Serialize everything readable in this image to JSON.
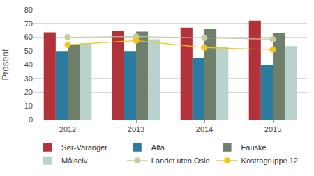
{
  "chart_data": {
    "type": "bar",
    "y_label": "Prosent",
    "categories": [
      "2012",
      "2013",
      "2014",
      "2015"
    ],
    "series": [
      {
        "name": "Sør-Varanger",
        "type": "bar",
        "color": "#b2323b",
        "values": [
          63.5,
          64.5,
          67,
          72
        ]
      },
      {
        "name": "Alta",
        "type": "bar",
        "color": "#2b7ba1",
        "values": [
          49.5,
          49.5,
          45,
          40
        ]
      },
      {
        "name": "Fauske",
        "type": "bar",
        "color": "#6e7f6c",
        "values": [
          54.5,
          64,
          66,
          63
        ]
      },
      {
        "name": "Målselv",
        "type": "bar",
        "color": "#b9d2ce",
        "values": [
          55.5,
          58.5,
          53,
          53.5
        ]
      },
      {
        "name": "Landet uten Oslo",
        "type": "line",
        "color": "#c6cd9c",
        "marker": "circle",
        "values": [
          60,
          60.5,
          59.5,
          58.5
        ]
      },
      {
        "name": "Kostragruppe 12",
        "type": "line",
        "color": "#f2c517",
        "marker": "circle",
        "values": [
          54.5,
          57.5,
          52.5,
          51
        ]
      }
    ],
    "ylim": [
      0,
      80
    ],
    "yticks": [
      0,
      10,
      20,
      30,
      40,
      50,
      60,
      70,
      80
    ],
    "grid": true,
    "legend": "bottom"
  }
}
